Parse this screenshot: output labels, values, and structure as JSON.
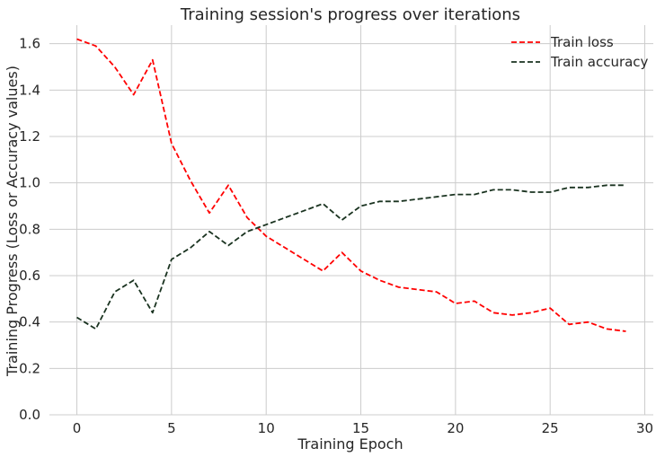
{
  "chart_data": {
    "type": "line",
    "title": "Training session's progress over iterations",
    "xlabel": "Training Epoch",
    "ylabel": "Training Progress (Loss or Accuracy values)",
    "xlim": [
      -1.45,
      30.45
    ],
    "ylim": [
      0.0,
      1.68
    ],
    "x_ticks": [
      0,
      5,
      10,
      15,
      20,
      25,
      30
    ],
    "y_ticks": [
      0.0,
      0.2,
      0.4,
      0.6,
      0.8,
      1.0,
      1.2,
      1.4,
      1.6
    ],
    "grid": true,
    "legend_position": "top-right",
    "x": [
      0,
      1,
      2,
      3,
      4,
      5,
      6,
      7,
      8,
      9,
      10,
      11,
      12,
      13,
      14,
      15,
      16,
      17,
      18,
      19,
      20,
      21,
      22,
      23,
      24,
      25,
      26,
      27,
      28,
      29
    ],
    "series": [
      {
        "name": "Train loss",
        "color": "#ff0000",
        "style": "dashed",
        "values": [
          1.62,
          1.59,
          1.5,
          1.38,
          1.53,
          1.17,
          1.01,
          0.87,
          0.99,
          0.85,
          0.77,
          0.72,
          0.67,
          0.62,
          0.7,
          0.62,
          0.58,
          0.55,
          0.54,
          0.53,
          0.48,
          0.49,
          0.44,
          0.43,
          0.44,
          0.46,
          0.39,
          0.4,
          0.37,
          0.36
        ]
      },
      {
        "name": "Train accuracy",
        "color": "#1a3320",
        "style": "dashed",
        "values": [
          0.42,
          0.37,
          0.53,
          0.58,
          0.44,
          0.67,
          0.72,
          0.79,
          0.73,
          0.79,
          0.82,
          0.85,
          0.88,
          0.91,
          0.84,
          0.9,
          0.92,
          0.92,
          0.93,
          0.94,
          0.95,
          0.95,
          0.97,
          0.97,
          0.96,
          0.96,
          0.98,
          0.98,
          0.99,
          0.99
        ]
      }
    ]
  }
}
